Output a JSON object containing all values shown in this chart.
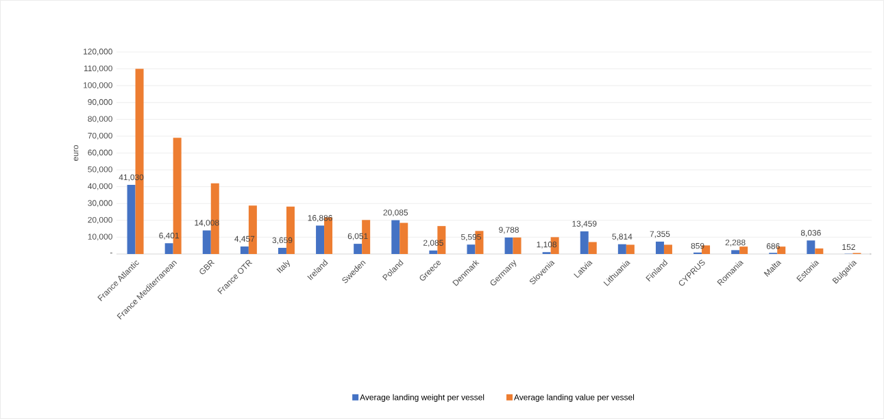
{
  "chart_data": {
    "type": "bar",
    "ylabel": "euro",
    "categories": [
      "France Atlantic",
      "France Mediterranean",
      "GBR",
      "France OTR",
      "Italy",
      "Ireland",
      "Sweden",
      "Poland",
      "Greece",
      "Denmark",
      "Germany",
      "Slovenia",
      "Latvia",
      "Lithuania",
      "Finland",
      "CYPRUS",
      "Romania",
      "Malta",
      "Estonia",
      "Bulgaria"
    ],
    "series": [
      {
        "name": "Average landing weight per vessel",
        "color": "#4472c4",
        "values": [
          41030,
          6401,
          14008,
          4457,
          3659,
          16886,
          6051,
          20085,
          2085,
          5595,
          9788,
          1108,
          13459,
          5814,
          7355,
          859,
          2288,
          686,
          8036,
          152
        ],
        "value_labels": [
          "41,030",
          "6,401",
          "14,008",
          "4,457",
          "3,659",
          "16,886",
          "6,051",
          "20,085",
          "2,085",
          "5,595",
          "9,788",
          "1,108",
          "13,459",
          "5,814",
          "7,355",
          "859",
          "2,288",
          "686",
          "8,036",
          "152"
        ]
      },
      {
        "name": "Average landing value per vessel",
        "color": "#ed7d31",
        "values": [
          110000,
          69000,
          42000,
          28800,
          28200,
          21800,
          20200,
          18500,
          16600,
          13700,
          9800,
          10000,
          7100,
          5500,
          5500,
          5100,
          4400,
          4400,
          3300,
          600
        ]
      }
    ],
    "ylim": [
      0,
      120000
    ],
    "yticks": [
      {
        "value": 0,
        "label": "-"
      },
      {
        "value": 10000,
        "label": "10,000"
      },
      {
        "value": 20000,
        "label": "20,000"
      },
      {
        "value": 30000,
        "label": "30,000"
      },
      {
        "value": 40000,
        "label": "40,000"
      },
      {
        "value": 50000,
        "label": "50,000"
      },
      {
        "value": 60000,
        "label": "60,000"
      },
      {
        "value": 70000,
        "label": "70,000"
      },
      {
        "value": 80000,
        "label": "80,000"
      },
      {
        "value": 90000,
        "label": "90,000"
      },
      {
        "value": 100000,
        "label": "100,000"
      },
      {
        "value": 110000,
        "label": "110,000"
      },
      {
        "value": 120000,
        "label": "120,000"
      }
    ],
    "grid": "y",
    "legend": "bottom"
  }
}
